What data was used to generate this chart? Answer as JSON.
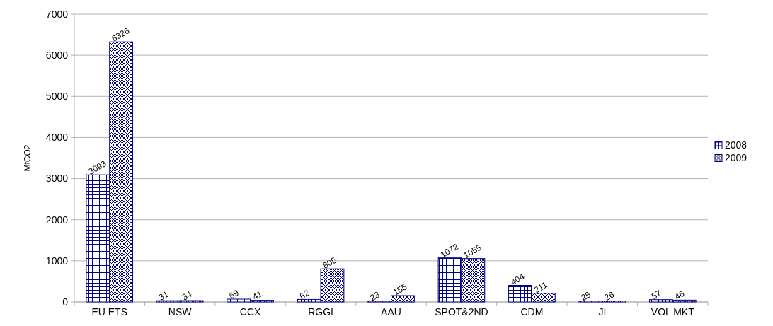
{
  "chart_data": {
    "type": "bar",
    "ylabel": "MtCO2",
    "categories": [
      "EU ETS",
      "NSW",
      "CCX",
      "RGGI",
      "AAU",
      "SPOT&2ND",
      "CDM",
      "JI",
      "VOL MKT"
    ],
    "series": [
      {
        "name": "2008",
        "color": "#000080",
        "values": [
          3093,
          31,
          69,
          62,
          23,
          1072,
          404,
          25,
          57
        ]
      },
      {
        "name": "2009",
        "color": "#000080",
        "values": [
          6326,
          34,
          41,
          805,
          155,
          1055,
          211,
          26,
          46
        ]
      }
    ],
    "ylim": [
      0,
      7000
    ],
    "yticks": [
      0,
      1000,
      2000,
      3000,
      4000,
      5000,
      6000,
      7000
    ],
    "grid": "y",
    "legend": "right",
    "data_labels": true
  }
}
